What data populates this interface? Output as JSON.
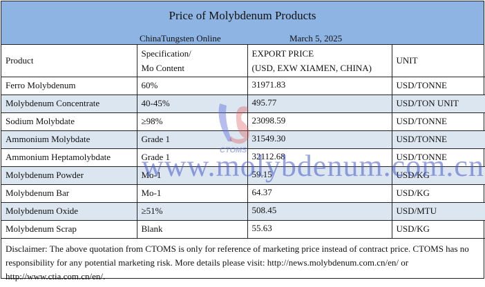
{
  "title": "Price of Molybdenum Products",
  "source": "ChinaTungsten Online",
  "date": "March 5, 2025",
  "headers": {
    "product": "Product",
    "spec1": "Specification/",
    "spec2": "Mo Content",
    "price1": "EXPORT PRICE",
    "price2": "(USD, EXW XIAMEN, CHINA)",
    "unit": "UNIT"
  },
  "rows": [
    {
      "product": "Ferro Molybdenum",
      "spec": "60%",
      "price": "31971.83",
      "unit": "USD/TONNE"
    },
    {
      "product": "Molybdenum Concentrate",
      "spec": "40-45%",
      "price": "495.77",
      "unit": "USD/TON UNIT"
    },
    {
      "product": "Sodium Molybdate",
      "spec": "≥98%",
      "price": "23098.59",
      "unit": "USD/TONNE"
    },
    {
      "product": "Ammonium Molybdate",
      "spec": "Grade 1",
      "price": "31549.30",
      "unit": "USD/TONNE"
    },
    {
      "product": "Ammonium Heptamolybdate",
      "spec": "Grade 1",
      "price": "32112.68",
      "unit": "USD/TONNE"
    },
    {
      "product": "Molybdenum Powder",
      "spec": "Mo-1",
      "price": "59.15",
      "unit": "USD/KG"
    },
    {
      "product": "Molybdenum Bar",
      "spec": "Mo-1",
      "price": "64.37",
      "unit": "USD/KG"
    },
    {
      "product": "Molybdenum Oxide",
      "spec": "≥51%",
      "price": "508.45",
      "unit": "USD/MTU"
    },
    {
      "product": "Molybdenum Scrap",
      "spec": "Blank",
      "price": "55.63",
      "unit": "USD/KG"
    }
  ],
  "disclaimer": "Disclaimer: The above quotation from CTOMS is only for reference of marketing price instead of contract price. CTOMS has no responsibility for any potential marketing risk. More details please visit: http://news.molybdenum.com.cn/en/ or http://www.ctia.com.cn/en/.",
  "watermark": "www.molybdenum.com.cn",
  "logo_text": "CTOMS",
  "colors": {
    "header": "#8DB4E2",
    "alt_row": "#DCE6F1"
  }
}
